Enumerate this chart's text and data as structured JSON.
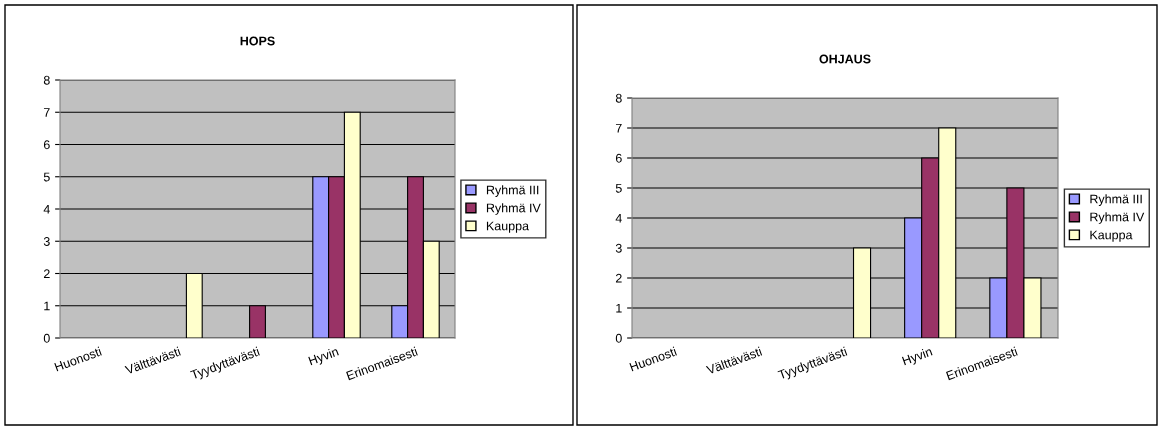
{
  "chart_data": [
    {
      "type": "bar",
      "title": "HOPS",
      "categories": [
        "Huonosti",
        "Välttävästi",
        "Tyydyttävästi",
        "Hyvin",
        "Erinomaisesti"
      ],
      "series": [
        {
          "name": "Ryhmä III",
          "color": "#9999ff",
          "values": [
            0,
            0,
            0,
            5,
            1
          ]
        },
        {
          "name": "Ryhmä IV",
          "color": "#993366",
          "values": [
            0,
            0,
            1,
            5,
            5
          ]
        },
        {
          "name": "Kauppa",
          "color": "#ffffcc",
          "values": [
            0,
            2,
            0,
            7,
            3
          ]
        }
      ],
      "ylim": [
        0,
        8
      ],
      "yticks": [
        0,
        1,
        2,
        3,
        4,
        5,
        6,
        7,
        8
      ],
      "grid": "y",
      "legend": "right"
    },
    {
      "type": "bar",
      "title": "OHJAUS",
      "categories": [
        "Huonosti",
        "Välttävästi",
        "Tyydyttävästi",
        "Hyvin",
        "Erinomaisesti"
      ],
      "series": [
        {
          "name": "Ryhmä III",
          "color": "#9999ff",
          "values": [
            0,
            0,
            0,
            4,
            2
          ]
        },
        {
          "name": "Ryhmä IV",
          "color": "#993366",
          "values": [
            0,
            0,
            0,
            6,
            5
          ]
        },
        {
          "name": "Kauppa",
          "color": "#ffffcc",
          "values": [
            0,
            0,
            3,
            7,
            2
          ]
        }
      ],
      "ylim": [
        0,
        8
      ],
      "yticks": [
        0,
        1,
        2,
        3,
        4,
        5,
        6,
        7,
        8
      ],
      "grid": "y",
      "legend": "right"
    }
  ]
}
